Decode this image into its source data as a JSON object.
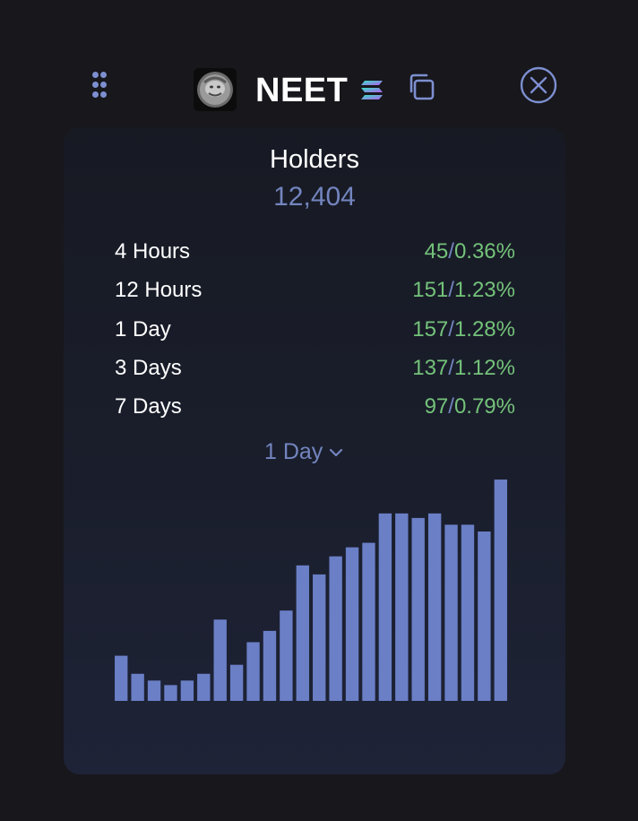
{
  "header": {
    "token_name": "NEET",
    "avatar_icon": "neet-avatar-icon",
    "chain_icon": "solana-icon",
    "copy_icon": "copy-icon",
    "close_icon": "close-circle-icon",
    "drag_icon": "drag-handle-icon"
  },
  "holders": {
    "label": "Holders",
    "count": "12,404"
  },
  "stats": [
    {
      "label": "4 Hours",
      "change": "45",
      "sep": "/",
      "percent": "0.36%"
    },
    {
      "label": "12 Hours",
      "change": "151",
      "sep": "/",
      "percent": "1.23%"
    },
    {
      "label": "1 Day",
      "change": "157",
      "sep": "/",
      "percent": "1.28%"
    },
    {
      "label": "3 Days",
      "change": "137",
      "sep": "/",
      "percent": "1.12%"
    },
    {
      "label": "7 Days",
      "change": "97",
      "sep": "/",
      "percent": "0.79%"
    }
  ],
  "period_select": {
    "selected": "1 Day"
  },
  "colors": {
    "background": "#17171c",
    "accent": "#7385bf",
    "bar": "#6a7fc6",
    "positive": "#74c27a",
    "text": "#ffffff"
  },
  "chart_data": {
    "type": "bar",
    "title": "",
    "xlabel": "",
    "ylabel": "",
    "values": [
      20,
      12,
      9,
      7,
      9,
      12,
      36,
      16,
      26,
      31,
      40,
      60,
      56,
      64,
      68,
      70,
      83,
      83,
      81,
      83,
      78,
      78,
      75,
      98
    ],
    "ylim": [
      0,
      100
    ],
    "grid": false,
    "legend": "none"
  }
}
